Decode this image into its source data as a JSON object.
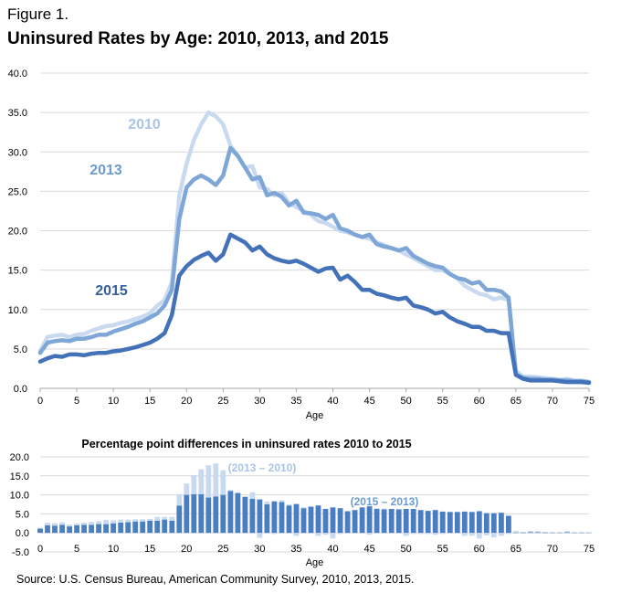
{
  "figure_label": "Figure 1.",
  "chart_data": [
    {
      "type": "line",
      "title": "Uninsured Rates by Age: 2010, 2013, and 2015",
      "xlabel": "Age",
      "ylabel": "",
      "xlim": [
        0,
        75
      ],
      "ylim": [
        0,
        40
      ],
      "xticks": [
        0,
        5,
        10,
        15,
        20,
        25,
        30,
        35,
        40,
        45,
        50,
        55,
        60,
        65,
        70,
        75
      ],
      "yticks": [
        "0.0",
        "5.0",
        "10.0",
        "15.0",
        "20.0",
        "25.0",
        "30.0",
        "35.0",
        "40.0"
      ],
      "grid": true,
      "x": [
        0,
        1,
        2,
        3,
        4,
        5,
        6,
        7,
        8,
        9,
        10,
        11,
        12,
        13,
        14,
        15,
        16,
        17,
        18,
        19,
        20,
        21,
        22,
        23,
        24,
        25,
        26,
        27,
        28,
        29,
        30,
        31,
        32,
        33,
        34,
        35,
        36,
        37,
        38,
        39,
        40,
        41,
        42,
        43,
        44,
        45,
        46,
        47,
        48,
        49,
        50,
        51,
        52,
        53,
        54,
        55,
        56,
        57,
        58,
        59,
        60,
        61,
        62,
        63,
        64,
        65,
        66,
        67,
        68,
        69,
        70,
        71,
        72,
        73,
        74,
        75
      ],
      "series": [
        {
          "name": "2010",
          "color": "#c9daf0",
          "values": [
            4.8,
            6.5,
            6.7,
            6.8,
            6.5,
            6.8,
            6.9,
            7.3,
            7.6,
            7.9,
            8.0,
            8.3,
            8.5,
            8.8,
            9.1,
            9.5,
            10.5,
            11.2,
            13.5,
            24.5,
            28.5,
            31.5,
            33.5,
            35.0,
            34.5,
            33.5,
            30.8,
            29.5,
            28.0,
            28.2,
            25.5,
            25.3,
            24.5,
            24.8,
            23.5,
            23.0,
            22.5,
            22.0,
            21.2,
            21.0,
            20.5,
            20.0,
            19.8,
            19.5,
            19.2,
            19.0,
            18.5,
            18.2,
            17.8,
            17.5,
            17.0,
            16.5,
            16.0,
            15.5,
            15.0,
            15.0,
            14.5,
            14.0,
            13.0,
            12.5,
            12.0,
            11.8,
            11.3,
            11.5,
            11.2,
            2.2,
            1.5,
            1.5,
            1.4,
            1.3,
            1.2,
            1.1,
            1.2,
            1.0,
            1.0,
            0.8
          ]
        },
        {
          "name": "2013",
          "color": "#7ea6d6",
          "values": [
            4.5,
            5.8,
            6.0,
            6.1,
            6.0,
            6.3,
            6.3,
            6.5,
            6.8,
            6.8,
            7.2,
            7.5,
            7.8,
            8.2,
            8.5,
            9.0,
            9.5,
            10.5,
            12.5,
            21.5,
            25.5,
            26.5,
            27.0,
            26.5,
            25.8,
            27.0,
            30.5,
            29.5,
            28.0,
            26.5,
            26.8,
            24.5,
            24.8,
            24.3,
            23.2,
            23.8,
            22.3,
            22.2,
            22.0,
            21.5,
            22.0,
            20.3,
            20.0,
            19.5,
            19.2,
            19.5,
            18.3,
            18.0,
            17.8,
            17.5,
            17.8,
            16.8,
            16.3,
            15.8,
            15.5,
            15.3,
            14.5,
            14.0,
            13.8,
            13.3,
            13.5,
            12.5,
            12.5,
            12.3,
            11.5,
            1.8,
            1.3,
            1.2,
            1.2,
            1.1,
            1.1,
            1.0,
            1.0,
            0.9,
            0.9,
            0.8
          ]
        },
        {
          "name": "2015",
          "color": "#4472b8",
          "values": [
            3.4,
            3.8,
            4.1,
            4.0,
            4.3,
            4.3,
            4.2,
            4.4,
            4.5,
            4.5,
            4.7,
            4.8,
            5.0,
            5.2,
            5.5,
            5.8,
            6.3,
            7.0,
            9.3,
            14.3,
            15.5,
            16.3,
            16.8,
            17.2,
            16.2,
            17.0,
            19.5,
            19.0,
            18.5,
            17.5,
            18.0,
            17.0,
            16.5,
            16.2,
            16.0,
            16.2,
            15.8,
            15.3,
            14.8,
            15.2,
            15.3,
            13.8,
            14.3,
            13.5,
            12.5,
            12.5,
            12.0,
            11.8,
            11.5,
            11.3,
            11.5,
            10.5,
            10.3,
            10.0,
            9.5,
            9.7,
            9.0,
            8.5,
            8.2,
            7.8,
            7.8,
            7.3,
            7.3,
            7.0,
            7.0,
            1.7,
            1.2,
            1.0,
            1.0,
            1.0,
            1.0,
            0.9,
            0.8,
            0.8,
            0.8,
            0.7
          ]
        }
      ],
      "annotations": [
        "2010",
        "2013",
        "2015"
      ]
    },
    {
      "type": "bar",
      "title": "Percentage point differences in uninsured rates 2010 to 2015",
      "xlabel": "Age",
      "xlim": [
        0,
        75
      ],
      "ylim": [
        -5,
        20
      ],
      "xticks": [
        0,
        5,
        10,
        15,
        20,
        25,
        30,
        35,
        40,
        45,
        50,
        55,
        60,
        65,
        70,
        75
      ],
      "yticks": [
        "-5.0",
        "0.0",
        "5.0",
        "10.0",
        "15.0",
        "20.0"
      ],
      "series": [
        {
          "name": "(2013 – 2010)",
          "color": "#c9daf0",
          "values": [
            0.3,
            0.7,
            0.7,
            0.7,
            0.5,
            0.5,
            0.6,
            0.8,
            0.8,
            1.1,
            0.8,
            0.8,
            0.7,
            0.6,
            0.6,
            0.5,
            1.0,
            0.7,
            1.0,
            3.0,
            3.0,
            5.0,
            6.5,
            8.5,
            8.7,
            6.5,
            0.3,
            0,
            0,
            1.7,
            -1.3,
            0.8,
            -0.3,
            0.5,
            0.3,
            -0.8,
            0.2,
            -0.2,
            -0.8,
            -0.5,
            -1.5,
            -0.3,
            -0.2,
            0,
            0,
            -0.5,
            0.2,
            0.2,
            0,
            0,
            -0.8,
            -0.3,
            -0.3,
            -0.3,
            -0.5,
            -0.3,
            0,
            0,
            -0.8,
            -0.8,
            -1.5,
            -0.7,
            -1.2,
            -0.8,
            -0.3,
            0.4,
            0.2,
            0.3,
            0.2,
            0.2,
            0.1,
            0.1,
            0.2,
            0.1,
            0.1,
            0
          ]
        },
        {
          "name": "(2015 – 2013)",
          "color": "#4a7dc2",
          "values": [
            1.1,
            2.0,
            1.9,
            2.1,
            1.7,
            2.0,
            2.1,
            2.1,
            2.3,
            2.3,
            2.5,
            2.7,
            2.8,
            3.0,
            3.0,
            3.2,
            3.2,
            3.5,
            3.2,
            7.2,
            10.0,
            10.2,
            10.2,
            9.3,
            9.6,
            10.0,
            11.0,
            10.5,
            9.5,
            9.0,
            8.8,
            7.5,
            8.3,
            8.1,
            7.2,
            7.6,
            6.5,
            6.9,
            7.2,
            6.3,
            6.7,
            6.5,
            5.7,
            6.0,
            6.7,
            7.0,
            6.3,
            6.2,
            6.3,
            6.2,
            6.3,
            6.3,
            6.0,
            5.8,
            6.0,
            5.6,
            5.5,
            5.5,
            5.6,
            5.5,
            5.7,
            5.2,
            5.2,
            5.3,
            4.5,
            0.1,
            0.1,
            0.2,
            0.2,
            0.1,
            0.1,
            0.1,
            0.2,
            0.1,
            0.1,
            0.1
          ]
        }
      ],
      "annotations": [
        "(2013 – 2010)",
        "(2015 – 2013)"
      ]
    }
  ],
  "source": "Source: U.S. Census Bureau, American Community Survey, 2010, 2013, 2015.",
  "colors": {
    "grid": "#d9d9d9",
    "axis": "#a6a6a6",
    "label_2010": "#a9c4e6",
    "label_2013": "#6b9bd2",
    "label_2015": "#355f9e"
  }
}
